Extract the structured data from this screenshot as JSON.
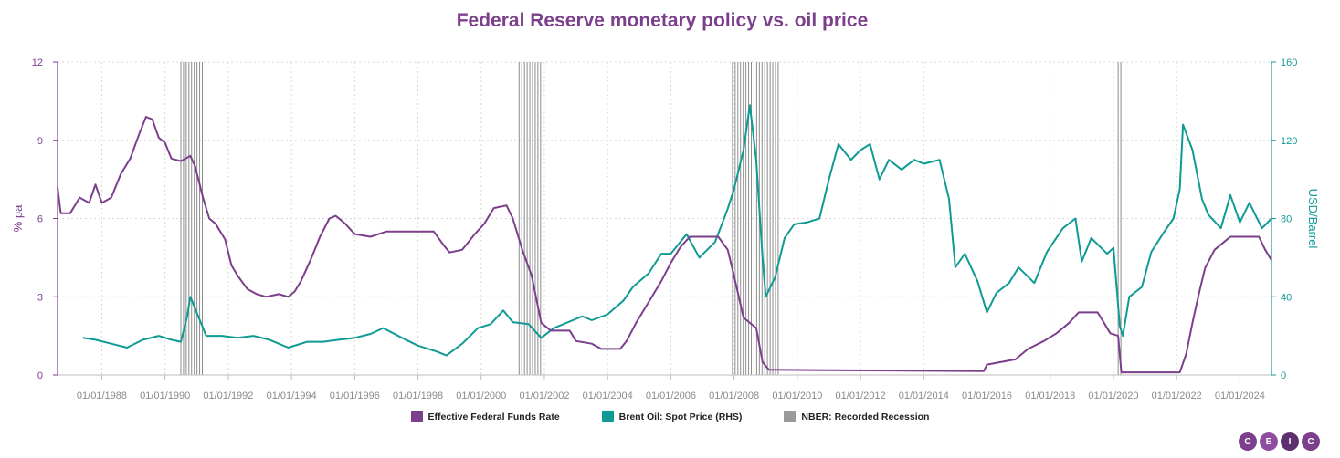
{
  "chart_data": {
    "type": "line",
    "title": "Federal Reserve monetary policy vs. oil price",
    "ylabel_left": "% pa",
    "ylabel_right": "USD/Barrel",
    "ylim_left": [
      0,
      12
    ],
    "ylim_right": [
      0,
      160
    ],
    "yticks_left": [
      "0",
      "3",
      "6",
      "9",
      "12"
    ],
    "yticks_right": [
      "0",
      "40",
      "80",
      "120",
      "160"
    ],
    "xlim": [
      1986.6,
      2025.0
    ],
    "xtick_labels": [
      "01/01/1988",
      "01/01/1990",
      "01/01/1992",
      "01/01/1994",
      "01/01/1996",
      "01/01/1998",
      "01/01/2000",
      "01/01/2002",
      "01/01/2004",
      "01/01/2006",
      "01/01/2008",
      "01/01/2010",
      "01/01/2012",
      "01/01/2014",
      "01/01/2016",
      "01/01/2018",
      "01/01/2020",
      "01/01/2022",
      "01/01/2024"
    ],
    "xtick_values": [
      1988,
      1990,
      1992,
      1994,
      1996,
      1998,
      2000,
      2002,
      2004,
      2006,
      2008,
      2010,
      2012,
      2014,
      2016,
      2018,
      2020,
      2022,
      2024
    ],
    "grid": true,
    "legend_position": "bottom",
    "recessions": [
      [
        1990.5,
        1991.2
      ],
      [
        2001.2,
        2001.9
      ],
      [
        2007.95,
        2009.45
      ],
      [
        2020.15,
        2020.3
      ]
    ],
    "series": [
      {
        "name": "Effective Federal Funds Rate",
        "axis": "left",
        "color": "#7b3f8c",
        "points": [
          [
            1986.6,
            7.2
          ],
          [
            1986.7,
            6.2
          ],
          [
            1987.0,
            6.2
          ],
          [
            1987.3,
            6.8
          ],
          [
            1987.6,
            6.6
          ],
          [
            1987.8,
            7.3
          ],
          [
            1988.0,
            6.6
          ],
          [
            1988.3,
            6.8
          ],
          [
            1988.6,
            7.7
          ],
          [
            1988.9,
            8.3
          ],
          [
            1989.2,
            9.3
          ],
          [
            1989.4,
            9.9
          ],
          [
            1989.6,
            9.8
          ],
          [
            1989.8,
            9.1
          ],
          [
            1990.0,
            8.9
          ],
          [
            1990.2,
            8.3
          ],
          [
            1990.5,
            8.2
          ],
          [
            1990.8,
            8.4
          ],
          [
            1990.95,
            8.0
          ],
          [
            1991.2,
            6.8
          ],
          [
            1991.4,
            6.0
          ],
          [
            1991.6,
            5.8
          ],
          [
            1991.9,
            5.2
          ],
          [
            1992.1,
            4.2
          ],
          [
            1992.3,
            3.8
          ],
          [
            1992.6,
            3.3
          ],
          [
            1992.9,
            3.1
          ],
          [
            1993.2,
            3.0
          ],
          [
            1993.6,
            3.1
          ],
          [
            1993.9,
            3.0
          ],
          [
            1994.1,
            3.2
          ],
          [
            1994.3,
            3.6
          ],
          [
            1994.6,
            4.4
          ],
          [
            1994.9,
            5.3
          ],
          [
            1995.2,
            6.0
          ],
          [
            1995.4,
            6.1
          ],
          [
            1995.7,
            5.8
          ],
          [
            1996.0,
            5.4
          ],
          [
            1996.5,
            5.3
          ],
          [
            1997.0,
            5.5
          ],
          [
            1997.5,
            5.5
          ],
          [
            1998.0,
            5.5
          ],
          [
            1998.5,
            5.5
          ],
          [
            1998.8,
            5.0
          ],
          [
            1999.0,
            4.7
          ],
          [
            1999.4,
            4.8
          ],
          [
            1999.8,
            5.4
          ],
          [
            2000.1,
            5.8
          ],
          [
            2000.4,
            6.4
          ],
          [
            2000.8,
            6.5
          ],
          [
            2001.0,
            6.0
          ],
          [
            2001.3,
            4.8
          ],
          [
            2001.6,
            3.8
          ],
          [
            2001.9,
            2.0
          ],
          [
            2002.2,
            1.7
          ],
          [
            2002.8,
            1.7
          ],
          [
            2003.0,
            1.3
          ],
          [
            2003.5,
            1.2
          ],
          [
            2003.8,
            1.0
          ],
          [
            2004.4,
            1.0
          ],
          [
            2004.6,
            1.3
          ],
          [
            2004.9,
            2.0
          ],
          [
            2005.3,
            2.8
          ],
          [
            2005.7,
            3.6
          ],
          [
            2006.0,
            4.3
          ],
          [
            2006.3,
            4.9
          ],
          [
            2006.6,
            5.3
          ],
          [
            2007.5,
            5.3
          ],
          [
            2007.8,
            4.8
          ],
          [
            2008.0,
            3.8
          ],
          [
            2008.3,
            2.2
          ],
          [
            2008.7,
            1.8
          ],
          [
            2008.9,
            0.5
          ],
          [
            2009.1,
            0.2
          ],
          [
            2015.9,
            0.15
          ],
          [
            2016.0,
            0.4
          ],
          [
            2016.9,
            0.6
          ],
          [
            2017.3,
            1.0
          ],
          [
            2017.8,
            1.3
          ],
          [
            2018.2,
            1.6
          ],
          [
            2018.6,
            2.0
          ],
          [
            2018.9,
            2.4
          ],
          [
            2019.5,
            2.4
          ],
          [
            2019.7,
            2.0
          ],
          [
            2019.9,
            1.6
          ],
          [
            2020.15,
            1.5
          ],
          [
            2020.25,
            0.1
          ],
          [
            2022.1,
            0.1
          ],
          [
            2022.3,
            0.8
          ],
          [
            2022.5,
            2.0
          ],
          [
            2022.7,
            3.1
          ],
          [
            2022.9,
            4.1
          ],
          [
            2023.2,
            4.8
          ],
          [
            2023.5,
            5.1
          ],
          [
            2023.7,
            5.3
          ],
          [
            2024.6,
            5.3
          ],
          [
            2024.8,
            4.8
          ],
          [
            2025.0,
            4.4
          ]
        ]
      },
      {
        "name": "Brent Oil: Spot Price (RHS)",
        "axis": "right",
        "color": "#0f9a94",
        "points": [
          [
            1987.4,
            19
          ],
          [
            1987.8,
            18
          ],
          [
            1988.3,
            16
          ],
          [
            1988.8,
            14
          ],
          [
            1989.3,
            18
          ],
          [
            1989.8,
            20
          ],
          [
            1990.2,
            18
          ],
          [
            1990.5,
            17
          ],
          [
            1990.7,
            30
          ],
          [
            1990.8,
            40
          ],
          [
            1991.0,
            32
          ],
          [
            1991.3,
            20
          ],
          [
            1991.8,
            20
          ],
          [
            1992.3,
            19
          ],
          [
            1992.8,
            20
          ],
          [
            1993.3,
            18
          ],
          [
            1993.9,
            14
          ],
          [
            1994.5,
            17
          ],
          [
            1995.0,
            17
          ],
          [
            1995.5,
            18
          ],
          [
            1996.0,
            19
          ],
          [
            1996.5,
            21
          ],
          [
            1996.9,
            24
          ],
          [
            1997.5,
            19
          ],
          [
            1998.0,
            15
          ],
          [
            1998.6,
            12
          ],
          [
            1998.9,
            10
          ],
          [
            1999.4,
            16
          ],
          [
            1999.9,
            24
          ],
          [
            2000.3,
            26
          ],
          [
            2000.7,
            33
          ],
          [
            2001.0,
            27
          ],
          [
            2001.5,
            26
          ],
          [
            2001.9,
            19
          ],
          [
            2002.3,
            24
          ],
          [
            2002.9,
            28
          ],
          [
            2003.2,
            30
          ],
          [
            2003.5,
            28
          ],
          [
            2004.0,
            31
          ],
          [
            2004.5,
            38
          ],
          [
            2004.8,
            45
          ],
          [
            2005.3,
            52
          ],
          [
            2005.7,
            62
          ],
          [
            2006.0,
            62
          ],
          [
            2006.5,
            72
          ],
          [
            2006.9,
            60
          ],
          [
            2007.4,
            68
          ],
          [
            2007.8,
            85
          ],
          [
            2008.0,
            95
          ],
          [
            2008.3,
            115
          ],
          [
            2008.5,
            138
          ],
          [
            2008.7,
            110
          ],
          [
            2008.9,
            60
          ],
          [
            2009.0,
            40
          ],
          [
            2009.3,
            50
          ],
          [
            2009.6,
            70
          ],
          [
            2009.9,
            77
          ],
          [
            2010.3,
            78
          ],
          [
            2010.7,
            80
          ],
          [
            2011.0,
            100
          ],
          [
            2011.3,
            118
          ],
          [
            2011.7,
            110
          ],
          [
            2012.0,
            115
          ],
          [
            2012.3,
            118
          ],
          [
            2012.6,
            100
          ],
          [
            2012.9,
            110
          ],
          [
            2013.3,
            105
          ],
          [
            2013.7,
            110
          ],
          [
            2014.0,
            108
          ],
          [
            2014.5,
            110
          ],
          [
            2014.8,
            90
          ],
          [
            2015.0,
            55
          ],
          [
            2015.3,
            62
          ],
          [
            2015.7,
            48
          ],
          [
            2016.0,
            32
          ],
          [
            2016.3,
            42
          ],
          [
            2016.7,
            47
          ],
          [
            2017.0,
            55
          ],
          [
            2017.5,
            47
          ],
          [
            2017.9,
            63
          ],
          [
            2018.4,
            75
          ],
          [
            2018.8,
            80
          ],
          [
            2019.0,
            58
          ],
          [
            2019.3,
            70
          ],
          [
            2019.8,
            62
          ],
          [
            2020.0,
            65
          ],
          [
            2020.2,
            25
          ],
          [
            2020.3,
            20
          ],
          [
            2020.5,
            40
          ],
          [
            2020.9,
            45
          ],
          [
            2021.2,
            63
          ],
          [
            2021.6,
            73
          ],
          [
            2021.9,
            80
          ],
          [
            2022.1,
            95
          ],
          [
            2022.2,
            128
          ],
          [
            2022.5,
            115
          ],
          [
            2022.8,
            90
          ],
          [
            2023.0,
            82
          ],
          [
            2023.4,
            75
          ],
          [
            2023.7,
            92
          ],
          [
            2024.0,
            78
          ],
          [
            2024.3,
            88
          ],
          [
            2024.7,
            75
          ],
          [
            2025.0,
            80
          ]
        ]
      },
      {
        "name": "NBER: Recorded Recession",
        "axis": "none",
        "color": "#9a9a9a"
      }
    ]
  },
  "brand": {
    "letters": [
      "C",
      "E",
      "I",
      "C"
    ]
  }
}
